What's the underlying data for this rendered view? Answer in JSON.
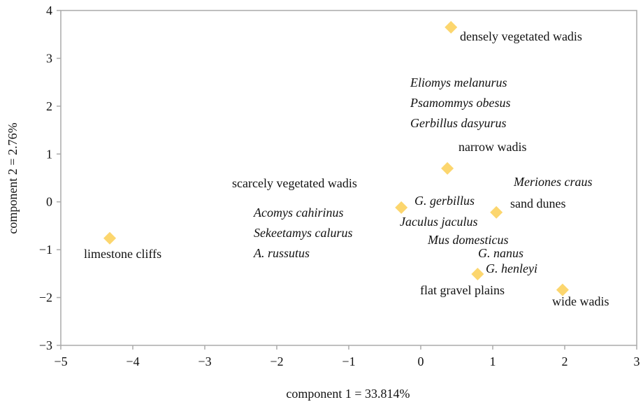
{
  "chart_data": {
    "type": "scatter",
    "xlabel": "component 1 = 33.814%",
    "ylabel": "component 2 = 2.76%",
    "xlim": [
      -5,
      3
    ],
    "ylim": [
      -3,
      4
    ],
    "xticks": [
      {
        "value": -5,
        "label": "−5"
      },
      {
        "value": -4,
        "label": "−4"
      },
      {
        "value": -3,
        "label": "−3"
      },
      {
        "value": -2,
        "label": "−2"
      },
      {
        "value": -1,
        "label": "−1"
      },
      0,
      1,
      2,
      3
    ],
    "yticks": [
      {
        "value": -3,
        "label": "−3"
      },
      {
        "value": -2,
        "label": "−2"
      },
      {
        "value": -1,
        "label": "−1"
      },
      0,
      1,
      2,
      3,
      4
    ],
    "series": [
      {
        "color": "#fcd66e",
        "labels": [
          "densely vegetated wadis",
          "narrow wadis",
          "scarcely vegetated wadis",
          "sand dunes",
          "limestone cliffs",
          "flat gravel plains",
          "wide wadis"
        ],
        "x": [
          0.42,
          0.37,
          -0.27,
          1.05,
          -4.32,
          0.79,
          1.97
        ],
        "values": [
          3.65,
          0.7,
          -0.12,
          -0.22,
          -0.76,
          -1.51,
          -1.84
        ]
      }
    ],
    "annotations": [
      "Eliomys melanurus",
      "Psamommys obesus",
      "Gerbillus dasyurus",
      "Meriones craus",
      "G. gerbillus",
      "Acomys cahirinus",
      "Jaculus jaculus",
      "Sekeetamys calurus",
      "Mus domesticus",
      "A. russutus",
      "G. nanus",
      "G. henleyi"
    ]
  }
}
